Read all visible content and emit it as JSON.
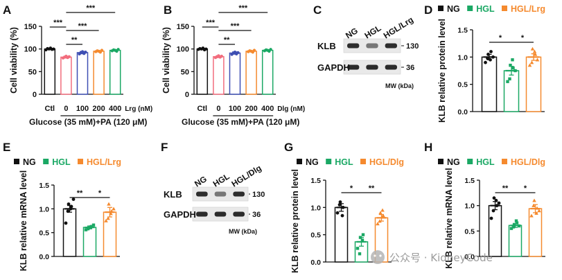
{
  "colors": {
    "black": "#111111",
    "pink": "#f26d7d",
    "blue": "#3e4fb3",
    "orange": "#f58a2e",
    "green": "#1aa864",
    "NG": "#111111",
    "HGL": "#1aa864",
    "HGL_treat": "#f58a2e"
  },
  "panels": {
    "A": "A",
    "B": "B",
    "C": "C",
    "D": "D",
    "E": "E",
    "F": "F",
    "G": "G",
    "H": "H"
  },
  "watermark": "公众号 · KidneyCode",
  "chart_data": [
    {
      "id": "A",
      "type": "bar",
      "ylabel": "Cell viability (%)",
      "ylim": [
        0,
        150
      ],
      "yticks": [
        "0",
        "50",
        "100",
        "150"
      ],
      "categories": [
        "Ctl",
        "0",
        "100",
        "200",
        "400"
      ],
      "unit_label": "Lrg (nM)",
      "treatment_label": "Glucose (35 mM)+PA (120 μM)",
      "values": [
        100,
        82,
        92,
        95,
        97
      ],
      "errors": [
        1.5,
        2,
        2.5,
        1.5,
        1.5
      ],
      "points": [
        [
          98,
          101,
          100,
          102,
          99,
          100
        ],
        [
          80,
          82,
          84,
          81,
          83
        ],
        [
          89,
          92,
          94,
          90,
          93
        ],
        [
          94,
          96,
          95,
          93,
          97
        ],
        [
          96,
          98,
          97,
          95,
          99
        ]
      ],
      "colors": [
        "#111111",
        "#f26d7d",
        "#3e4fb3",
        "#f58a2e",
        "#1aa864"
      ],
      "significance": [
        "***",
        "**",
        "***",
        "***"
      ]
    },
    {
      "id": "B",
      "type": "bar",
      "ylabel": "Cell viability (%)",
      "ylim": [
        0,
        150
      ],
      "yticks": [
        "0",
        "50",
        "100",
        "150"
      ],
      "categories": [
        "Ctl",
        "0",
        "100",
        "200",
        "400"
      ],
      "unit_label": "Dlg (nM)",
      "treatment_label": "Glucose (35 mM)+PA (120 μM)",
      "values": [
        100,
        83,
        91,
        95,
        97
      ],
      "errors": [
        1.5,
        2,
        2.5,
        1.5,
        1.5
      ],
      "points": [
        [
          99,
          101,
          100,
          102,
          98,
          100
        ],
        [
          81,
          83,
          85,
          82,
          84
        ],
        [
          88,
          91,
          93,
          89,
          92
        ],
        [
          94,
          96,
          95,
          93,
          97
        ],
        [
          96,
          98,
          97,
          95,
          99
        ]
      ],
      "colors": [
        "#111111",
        "#f26d7d",
        "#3e4fb3",
        "#f58a2e",
        "#1aa864"
      ],
      "significance": [
        "***",
        "**",
        "***",
        "***"
      ]
    },
    {
      "id": "C",
      "type": "blot",
      "lanes": [
        "NG",
        "HGL",
        "HGL/Lrg"
      ],
      "rows": [
        "KLB",
        "GAPDH"
      ],
      "mw": [
        "130",
        "36"
      ],
      "mw_label": "MW (kDa)"
    },
    {
      "id": "D",
      "type": "bar",
      "ylabel": "KLB relative protein level",
      "ylim": [
        0,
        1.5
      ],
      "yticks": [
        "0.0",
        "0.5",
        "1.0",
        "1.5"
      ],
      "legend": [
        "NG",
        "HGL",
        "HGL/Lrg"
      ],
      "values": [
        1.0,
        0.75,
        1.0
      ],
      "errors": [
        0.05,
        0.08,
        0.06
      ],
      "points": [
        [
          0.9,
          1.05,
          1.1,
          0.98,
          0.95,
          1.0
        ],
        [
          0.55,
          0.85,
          0.8,
          0.6,
          0.95,
          0.75
        ],
        [
          0.85,
          1.15,
          1.05,
          0.9,
          1.1,
          0.95
        ]
      ],
      "colors": [
        "#111111",
        "#1aa864",
        "#f58a2e"
      ],
      "significance": [
        "*",
        "*"
      ]
    },
    {
      "id": "E",
      "type": "bar",
      "ylabel": "KLB relative mRNA level",
      "ylim": [
        0,
        1.5
      ],
      "yticks": [
        "0.0",
        "0.5",
        "1.0",
        "1.5"
      ],
      "legend": [
        "NG",
        "HGL",
        "HGL/Lrg"
      ],
      "values": [
        1.0,
        0.61,
        0.93
      ],
      "errors": [
        0.07,
        0.03,
        0.1
      ],
      "points": [
        [
          0.7,
          1.1,
          1.05,
          0.95,
          1.0,
          1.2
        ],
        [
          0.56,
          0.6,
          0.63,
          0.58,
          0.62,
          0.66
        ],
        [
          0.75,
          1.1,
          0.95,
          0.8,
          0.9,
          1.0
        ]
      ],
      "colors": [
        "#111111",
        "#1aa864",
        "#f58a2e"
      ],
      "significance": [
        "**",
        "*"
      ]
    },
    {
      "id": "F",
      "type": "blot",
      "lanes": [
        "NG",
        "HGL",
        "HGL/Dlg"
      ],
      "rows": [
        "KLB",
        "GAPDH"
      ],
      "mw": [
        "130",
        "36"
      ],
      "mw_label": "MW (kDa)"
    },
    {
      "id": "G",
      "type": "bar",
      "ylabel": "KLB relative protein level",
      "ylim": [
        0,
        1.5
      ],
      "yticks": [
        "0.0",
        "0.5",
        "1.0",
        "1.5"
      ],
      "legend": [
        "NG",
        "HGL",
        "HGL/Dlg"
      ],
      "values": [
        1.0,
        0.37,
        0.81
      ],
      "errors": [
        0.07,
        0.08,
        0.06
      ],
      "points": [
        [
          0.9,
          1.1,
          1.0,
          1.05,
          0.85
        ],
        [
          0.25,
          0.45,
          0.5,
          0.15,
          0.4
        ],
        [
          0.7,
          0.9,
          0.85,
          0.75,
          0.95
        ]
      ],
      "colors": [
        "#111111",
        "#1aa864",
        "#f58a2e"
      ],
      "significance": [
        "*",
        "**"
      ]
    },
    {
      "id": "H",
      "type": "bar",
      "ylabel": "KLB relative mRNA level",
      "ylim": [
        0,
        1.5
      ],
      "yticks": [
        "0.0",
        "0.5",
        "1.0",
        "1.5"
      ],
      "legend": [
        "NG",
        "HGL",
        "HGL/Dlg"
      ],
      "values": [
        1.0,
        0.61,
        0.94
      ],
      "errors": [
        0.08,
        0.04,
        0.08
      ],
      "points": [
        [
          0.75,
          1.15,
          1.0,
          0.9,
          1.1,
          1.05
        ],
        [
          0.55,
          0.62,
          0.66,
          0.58,
          0.7,
          0.6
        ],
        [
          0.8,
          1.1,
          0.95,
          1.0,
          0.85,
          0.9
        ]
      ],
      "colors": [
        "#111111",
        "#1aa864",
        "#f58a2e"
      ],
      "significance": [
        "**",
        "*"
      ]
    }
  ]
}
